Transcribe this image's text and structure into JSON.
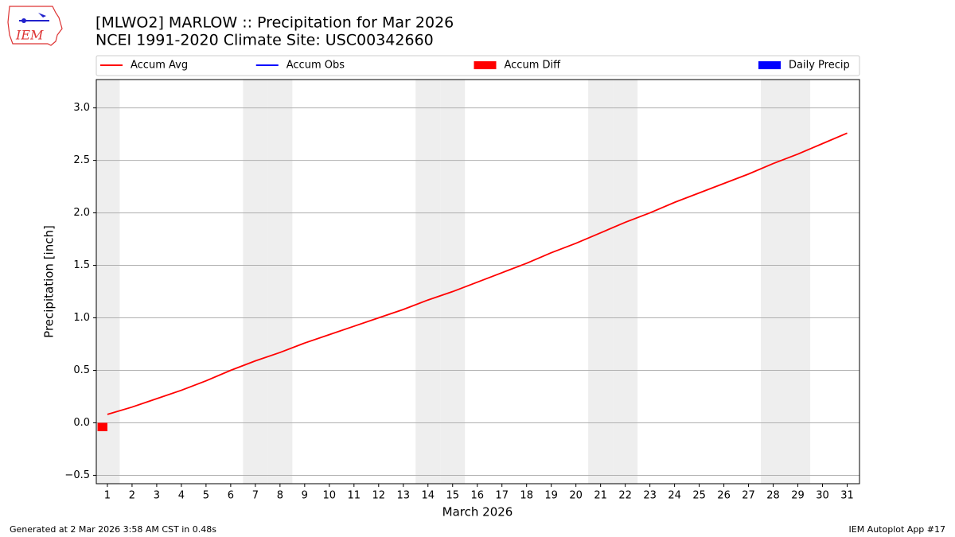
{
  "logo_text": "IEM",
  "footer": {
    "left": "Generated at 2 Mar 2026 3:58 AM CST in 0.48s",
    "right": "IEM Autoplot App #17"
  },
  "chart_data": {
    "type": "line",
    "title": "[MLWO2] MARLOW :: Precipitation for Mar 2026",
    "subtitle": "NCEI 1991-2020 Climate Site: USC00342660",
    "xlabel": "March 2026",
    "ylabel": "Precipitation [inch]",
    "x": [
      1,
      2,
      3,
      4,
      5,
      6,
      7,
      8,
      9,
      10,
      11,
      12,
      13,
      14,
      15,
      16,
      17,
      18,
      19,
      20,
      21,
      22,
      23,
      24,
      25,
      26,
      27,
      28,
      29,
      30,
      31
    ],
    "xlim": [
      0.55,
      31.5
    ],
    "xticks": [
      1,
      2,
      3,
      4,
      5,
      6,
      7,
      8,
      9,
      10,
      11,
      12,
      13,
      14,
      15,
      16,
      17,
      18,
      19,
      20,
      21,
      22,
      23,
      24,
      25,
      26,
      27,
      28,
      29,
      30,
      31
    ],
    "ylim": [
      -0.58,
      3.27
    ],
    "yticks": [
      {
        "value": -0.5,
        "label": "−0.5"
      },
      {
        "value": 0,
        "label": "0.0"
      },
      0.5,
      {
        "value": 1,
        "label": "1.0"
      },
      1.5,
      {
        "value": 2,
        "label": "2.0"
      },
      2.5,
      {
        "value": 3,
        "label": "3.0"
      }
    ],
    "grid": "y",
    "weekend_days": [
      1,
      7,
      8,
      14,
      15,
      21,
      22,
      28,
      29
    ],
    "weekend_color": "#eeeeee",
    "legend": "top",
    "series": [
      {
        "name": "Accum Avg",
        "color": "#ff0000",
        "kind": "line",
        "values": [
          0.08,
          0.15,
          0.23,
          0.31,
          0.4,
          0.5,
          0.59,
          0.67,
          0.76,
          0.84,
          0.92,
          1.0,
          1.08,
          1.17,
          1.25,
          1.34,
          1.43,
          1.52,
          1.62,
          1.71,
          1.81,
          1.91,
          2.0,
          2.1,
          2.19,
          2.28,
          2.37,
          2.47,
          2.56,
          2.66,
          2.76
        ]
      },
      {
        "name": "Accum Obs",
        "color": "#0000ff",
        "kind": "line",
        "values": [
          0,
          null,
          null,
          null,
          null,
          null,
          null,
          null,
          null,
          null,
          null,
          null,
          null,
          null,
          null,
          null,
          null,
          null,
          null,
          null,
          null,
          null,
          null,
          null,
          null,
          null,
          null,
          null,
          null,
          null,
          null
        ]
      },
      {
        "name": "Accum Diff",
        "color": "#ff0000",
        "kind": "bar",
        "side": "left",
        "values": [
          -0.08,
          null,
          null,
          null,
          null,
          null,
          null,
          null,
          null,
          null,
          null,
          null,
          null,
          null,
          null,
          null,
          null,
          null,
          null,
          null,
          null,
          null,
          null,
          null,
          null,
          null,
          null,
          null,
          null,
          null,
          null
        ]
      },
      {
        "name": "Daily Precip",
        "color": "#0000ff",
        "kind": "bar",
        "side": "right",
        "values": [
          0,
          null,
          null,
          null,
          null,
          null,
          null,
          null,
          null,
          null,
          null,
          null,
          null,
          null,
          null,
          null,
          null,
          null,
          null,
          null,
          null,
          null,
          null,
          null,
          null,
          null,
          null,
          null,
          null,
          null,
          null
        ]
      }
    ]
  }
}
